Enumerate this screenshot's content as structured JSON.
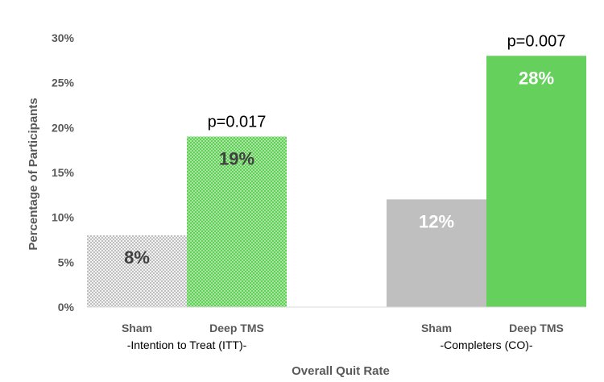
{
  "chart_data": {
    "type": "bar",
    "xlabel": "Overall Quit Rate",
    "ylabel": "Percentage of Participants",
    "ylim": [
      0,
      30
    ],
    "yticks": [
      "0%",
      "5%",
      "10%",
      "15%",
      "20%",
      "25%",
      "30%"
    ],
    "grid": false,
    "bars": [
      {
        "group": "-Intention to Treat (ITT)-",
        "category": "Sham",
        "value": 8,
        "label": "8%",
        "fill": "#d9d9d9",
        "pattern": true,
        "label_color": "#404040"
      },
      {
        "group": "-Intention to Treat (ITT)-",
        "category": "Deep TMS",
        "value": 19,
        "label": "19%",
        "fill": "#66cc66",
        "pattern": true,
        "label_color": "#404040",
        "annotation": "p=0.017"
      },
      {
        "group": "-Completers (CO)-",
        "category": "Sham",
        "value": 12,
        "label": "12%",
        "fill": "#bfbfbf",
        "pattern": false,
        "label_color": "#ffffff"
      },
      {
        "group": "-Completers (CO)-",
        "category": "Deep TMS",
        "value": 28,
        "label": "28%",
        "fill": "#66d05c",
        "pattern": false,
        "label_color": "#ffffff",
        "annotation": "p=0.007"
      }
    ],
    "groups": [
      "-Intention to Treat (ITT)-",
      "-Completers (CO)-"
    ]
  }
}
